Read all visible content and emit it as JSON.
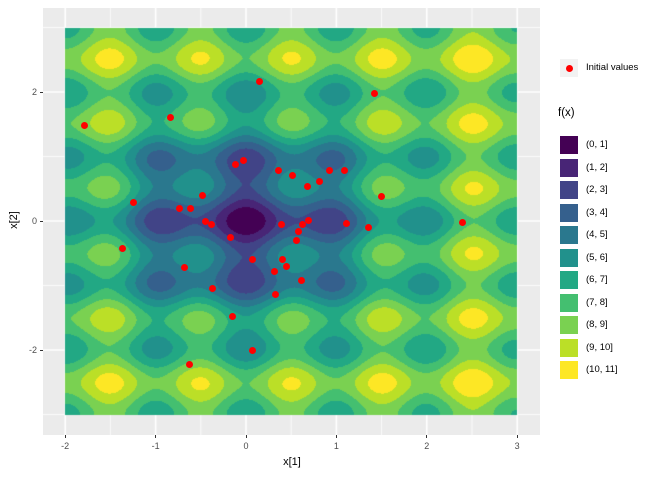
{
  "chart_data": {
    "type": "heatmap",
    "subtype": "filled_contour_with_scatter_overlay",
    "title": "",
    "xlabel": "x[1]",
    "ylabel": "x[2]",
    "x_domain": [
      -2,
      3
    ],
    "y_domain": [
      -3,
      3
    ],
    "x_ticks": [
      "-2",
      "-1",
      "0",
      "1",
      "2",
      "3"
    ],
    "x_tick_values": [
      -2,
      -1,
      0,
      1,
      2,
      3
    ],
    "y_ticks": [
      "2",
      "0",
      "-2"
    ],
    "y_tick_values": [
      2,
      0,
      -2
    ],
    "x_minor_tick_values": [
      -1.5,
      -0.5,
      0.5,
      1.5,
      2.5
    ],
    "y_minor_tick_values": [
      -3,
      -1,
      1,
      3
    ],
    "grid": true,
    "legend_position": "right",
    "point_legend": {
      "label": "Initial values",
      "color": "#FF0000"
    },
    "fill_legend": {
      "title": "f(x)",
      "bins": [
        {
          "label": "(0, 1]",
          "color": "#440154"
        },
        {
          "label": "(1, 2]",
          "color": "#482576"
        },
        {
          "label": "(2, 3]",
          "color": "#414487"
        },
        {
          "label": "(3, 4]",
          "color": "#35608D"
        },
        {
          "label": "(4, 5]",
          "color": "#2A788E"
        },
        {
          "label": "(5, 6]",
          "color": "#21918C"
        },
        {
          "label": "(6, 7]",
          "color": "#22A884"
        },
        {
          "label": "(7, 8]",
          "color": "#44BF70"
        },
        {
          "label": "(8, 9]",
          "color": "#7AD151"
        },
        {
          "label": "(9, 10]",
          "color": "#BBDF27"
        },
        {
          "label": "(10, 11]",
          "color": "#FDE725"
        }
      ]
    },
    "scatter_points": [
      [
        0.15,
        2.17
      ],
      [
        1.42,
        1.98
      ],
      [
        -1.79,
        1.48
      ],
      [
        -0.83,
        1.61
      ],
      [
        -0.12,
        0.87
      ],
      [
        -0.03,
        0.94
      ],
      [
        0.36,
        0.78
      ],
      [
        0.51,
        0.71
      ],
      [
        0.92,
        0.79
      ],
      [
        1.09,
        0.78
      ],
      [
        0.68,
        0.54
      ],
      [
        0.81,
        0.61
      ],
      [
        1.5,
        0.38
      ],
      [
        -0.48,
        0.4
      ],
      [
        -1.25,
        0.28
      ],
      [
        -0.74,
        0.19
      ],
      [
        -0.61,
        0.19
      ],
      [
        -0.45,
        -0.01
      ],
      [
        -0.38,
        -0.05
      ],
      [
        -0.17,
        -0.26
      ],
      [
        -1.37,
        -0.43
      ],
      [
        -0.68,
        -0.72
      ],
      [
        0.07,
        -0.6
      ],
      [
        0.4,
        -0.6
      ],
      [
        0.32,
        -0.79
      ],
      [
        0.45,
        -0.7
      ],
      [
        -0.37,
        -1.05
      ],
      [
        0.33,
        -1.14
      ],
      [
        -0.15,
        -1.48
      ],
      [
        0.07,
        -2.0
      ],
      [
        -0.62,
        -2.22
      ],
      [
        0.69,
        0.01
      ],
      [
        0.39,
        -0.05
      ],
      [
        0.62,
        -0.05
      ],
      [
        0.58,
        -0.16
      ],
      [
        0.56,
        -0.31
      ],
      [
        1.11,
        -0.04
      ],
      [
        1.35,
        -0.1
      ],
      [
        0.61,
        -0.93
      ],
      [
        2.39,
        -0.03
      ]
    ],
    "surface": {
      "description": "Rippled bowl-shaped objective surface; global minimum f~0 at (0,0); shallow local minima at integer lattice points; values binned into intervals (k, k+1], k = 0..10",
      "formula_approx": "f(x,y) = 5.5*(1 - exp(-(x^2+y^2)/2)) + 0.08*(x^2+y^2) + 1.1*(2 - cos(2*pi*x) - cos(2*pi*y))",
      "bin_breaks": [
        0,
        1,
        2,
        3,
        4,
        5,
        6,
        7,
        8,
        9,
        10,
        11
      ]
    },
    "theme": {
      "figure_background": "#FFFFFF",
      "panel_background": "#EBEBEB",
      "grid_color": "#FFFFFF",
      "tick_label_color": "#4D4D4D",
      "axis_title_color": "#000000",
      "tick_mark_color": "#333333",
      "legend_key_background": "#F2F2F2"
    }
  }
}
